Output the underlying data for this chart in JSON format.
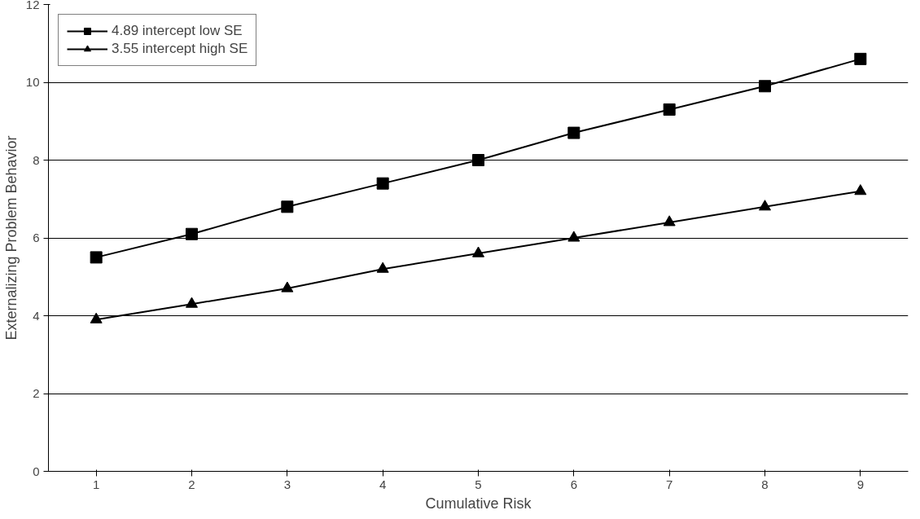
{
  "chart_data": {
    "type": "line",
    "xlabel": "Cumulative Risk",
    "ylabel": "Externalizing Problem Behavior",
    "categories": [
      "1",
      "2",
      "3",
      "4",
      "5",
      "6",
      "7",
      "8",
      "9"
    ],
    "series": [
      {
        "name": "4.89 intercept low SE",
        "color": "#000000",
        "marker": "square",
        "values": [
          5.5,
          6.1,
          6.8,
          7.4,
          8.0,
          8.7,
          9.3,
          9.9,
          10.6
        ]
      },
      {
        "name": "3.55 intercept high SE",
        "color": "#000000",
        "marker": "triangle",
        "values": [
          3.9,
          4.3,
          4.7,
          5.2,
          5.6,
          6.0,
          6.4,
          6.8,
          7.2
        ]
      }
    ],
    "ylim": [
      0,
      12
    ],
    "yticks": [
      0,
      2,
      4,
      6,
      8,
      10,
      12
    ],
    "grid": "y",
    "legend": "top left",
    "line_style": "solid"
  }
}
